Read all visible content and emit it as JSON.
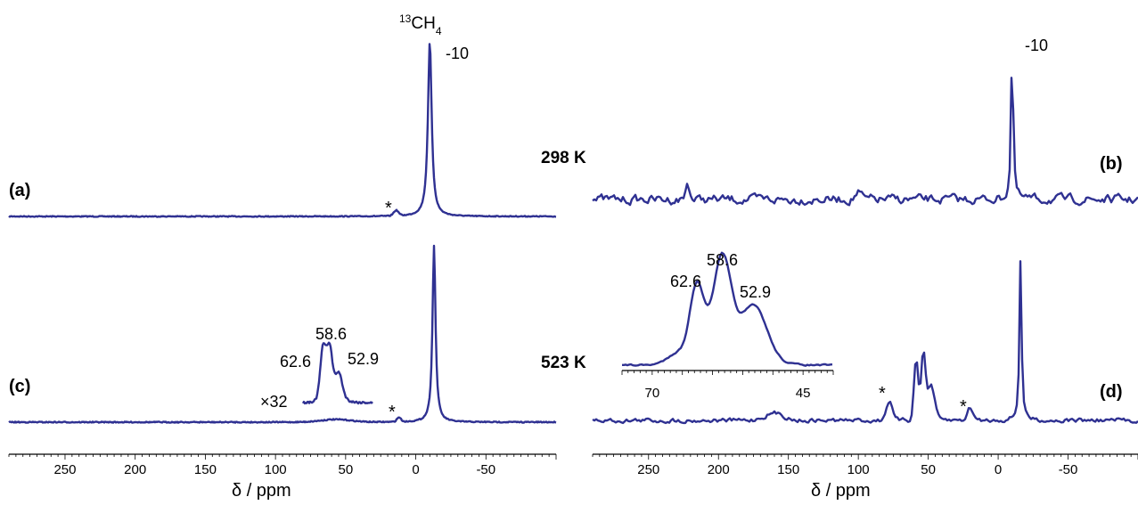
{
  "colors": {
    "spectrum": "#2f3192",
    "axis": "#000000"
  },
  "axis_label": "δ / ppm",
  "temperatures": {
    "top": "298 K",
    "bottom": "523 K"
  },
  "annotations": {
    "methane": "13CH4",
    "asterisk": "*",
    "scale": "×32"
  },
  "chart_data": [
    {
      "type": "line",
      "panel": "(a)",
      "x_range": [
        290,
        -100
      ],
      "reversed_x": true,
      "x_ticks": [
        "250",
        "200",
        "150",
        "100",
        "50",
        "0",
        "-50"
      ],
      "peaks": [
        {
          "x": -10,
          "label": "-10",
          "type": "main"
        },
        {
          "x": 14,
          "label": "*",
          "type": "spinning sideband"
        }
      ]
    },
    {
      "type": "line",
      "panel": "(b)",
      "x_range": [
        290,
        -100
      ],
      "reversed_x": true,
      "x_ticks": [
        "250",
        "200",
        "150",
        "100",
        "50",
        "0",
        "-50"
      ],
      "peaks": [
        {
          "x": -10,
          "label": "-10",
          "type": "main"
        }
      ]
    },
    {
      "type": "line",
      "panel": "(c)",
      "x_range": [
        290,
        -100
      ],
      "reversed_x": true,
      "x_ticks": [
        "250",
        "200",
        "150",
        "100",
        "50",
        "0",
        "-50"
      ],
      "peaks": [
        {
          "x": -13,
          "label": "",
          "type": "main"
        },
        {
          "x": 12,
          "label": "*",
          "type": "spinning sideband"
        }
      ],
      "inset": {
        "scale": "×32",
        "peaks": [
          {
            "x": 62.6,
            "label": "62.6"
          },
          {
            "x": 58.6,
            "label": "58.6"
          },
          {
            "x": 52.9,
            "label": "52.9"
          }
        ]
      }
    },
    {
      "type": "line",
      "panel": "(d)",
      "x_range": [
        290,
        -100
      ],
      "reversed_x": true,
      "x_ticks": [
        "250",
        "200",
        "150",
        "100",
        "50",
        "0",
        "-50"
      ],
      "peaks": [
        {
          "x": -16,
          "label": "",
          "type": "main"
        },
        {
          "x": 78,
          "label": "*",
          "type": "spinning sideband"
        },
        {
          "x": 20,
          "label": "*",
          "type": "spinning sideband"
        },
        {
          "x": 62.6,
          "label": "",
          "type": "main"
        },
        {
          "x": 58.6,
          "label": "",
          "type": "main"
        },
        {
          "x": 52.9,
          "label": "",
          "type": "main"
        }
      ],
      "inset": {
        "x_range": [
          75,
          40
        ],
        "x_ticks": [
          "70",
          "45"
        ],
        "peaks": [
          {
            "x": 62.6,
            "label": "62.6"
          },
          {
            "x": 58.6,
            "label": "58.6"
          },
          {
            "x": 52.9,
            "label": "52.9"
          }
        ]
      }
    }
  ]
}
